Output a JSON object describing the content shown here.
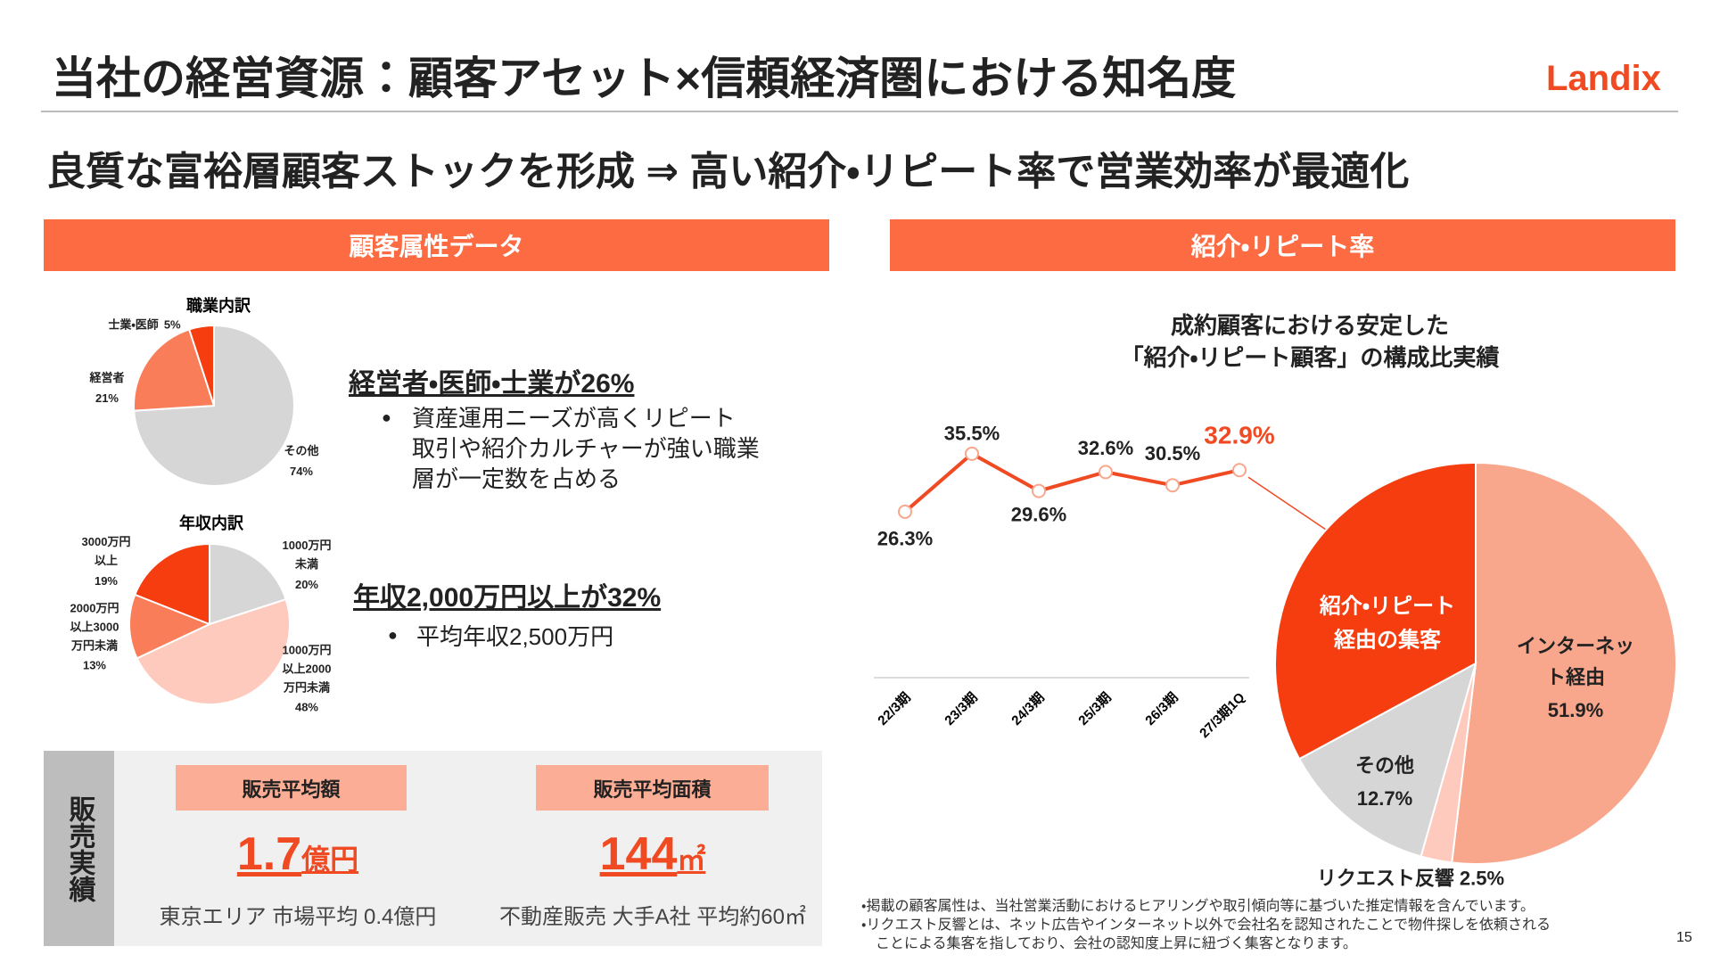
{
  "header": {
    "title": "当社の経営資源：顧客アセット×信頼経済圏における知名度",
    "logo": "Landix",
    "subtitle": "良質な富裕層顧客ストックを形成 ⇒ 高い紹介・リピート率で営業効率が最適化"
  },
  "left": {
    "heading": "顧客属性データ",
    "point1": {
      "headline": "経営者・医師・士業が26%",
      "bullet": "資産運用ニーズが高くリピート\n取引や紹介カルチャーが強い職業\n層が一定数を占める"
    },
    "point2": {
      "headline": "年収2,000万円以上が32%",
      "bullet": "平均年収2,500万円"
    },
    "sales": {
      "label": "販売実績",
      "items": [
        {
          "heading": "販売平均額",
          "value": "1.7",
          "unit": "億円",
          "note": "東京エリア 市場平均 0.4億円"
        },
        {
          "heading": "販売平均面積",
          "value": "144",
          "unit": "㎡",
          "note": "不動産販売 大手A社 平均約60㎡"
        }
      ]
    }
  },
  "right": {
    "heading": "紹介・リピート率",
    "chart_title": "成約顧客における安定した\n「紹介・リピート顧客」の構成比実績"
  },
  "chart_data": [
    {
      "type": "pie",
      "title": "職業内訳",
      "categories": [
        "その他",
        "経営者",
        "士業・医師"
      ],
      "values": [
        74,
        21,
        5
      ],
      "value_labels": [
        "74%",
        "21%",
        "5%"
      ],
      "colors": [
        "#d6d6d6",
        "#fa7d5a",
        "#f53d10"
      ]
    },
    {
      "type": "pie",
      "title": "年収内訳",
      "categories": [
        "1000万円\n未満",
        "1000万円\n以上2000\n万円未満",
        "2000万円\n以上3000\n万円未満",
        "3000万円\n以上"
      ],
      "values": [
        20,
        48,
        13,
        19
      ],
      "value_labels": [
        "20%",
        "48%",
        "13%",
        "19%"
      ],
      "colors": [
        "#d6d6d6",
        "#fdcabd",
        "#fa7d5a",
        "#f53d10"
      ]
    },
    {
      "type": "line",
      "categories": [
        "22/3期",
        "23/3期",
        "24/3期",
        "25/3期",
        "26/3期",
        "27/3期1Q"
      ],
      "values": [
        26.3,
        35.5,
        29.6,
        32.6,
        30.5,
        32.9
      ],
      "value_labels": [
        "26.3%",
        "35.5%",
        "29.6%",
        "32.6%",
        "30.5%",
        "32.9%"
      ],
      "color": "#f04a23",
      "ylim": [
        0,
        40
      ]
    },
    {
      "type": "pie",
      "categories": [
        "インターネット経由",
        "リクエスト反響",
        "その他",
        "紹介・リピート\n経由の集客"
      ],
      "values": [
        51.9,
        2.5,
        12.7,
        32.9
      ],
      "value_labels": [
        "51.9%",
        "2.5%",
        "12.7%",
        null
      ],
      "colors": [
        "#f8a68c",
        "#fdcabd",
        "#d6d6d6",
        "#f53d10"
      ]
    }
  ],
  "notes": [
    "・掲載の顧客属性は、当社営業活動におけるヒアリングや取引傾向等に基づいた推定情報を含んでいます。",
    "・リクエスト反響とは、ネット広告やインターネット以外で会社名を認知されたことで物件探しを依頼される\n　ことによる集客を指しており、会社の認知度上昇に紐づく集客となります。"
  ],
  "page_number": "15"
}
